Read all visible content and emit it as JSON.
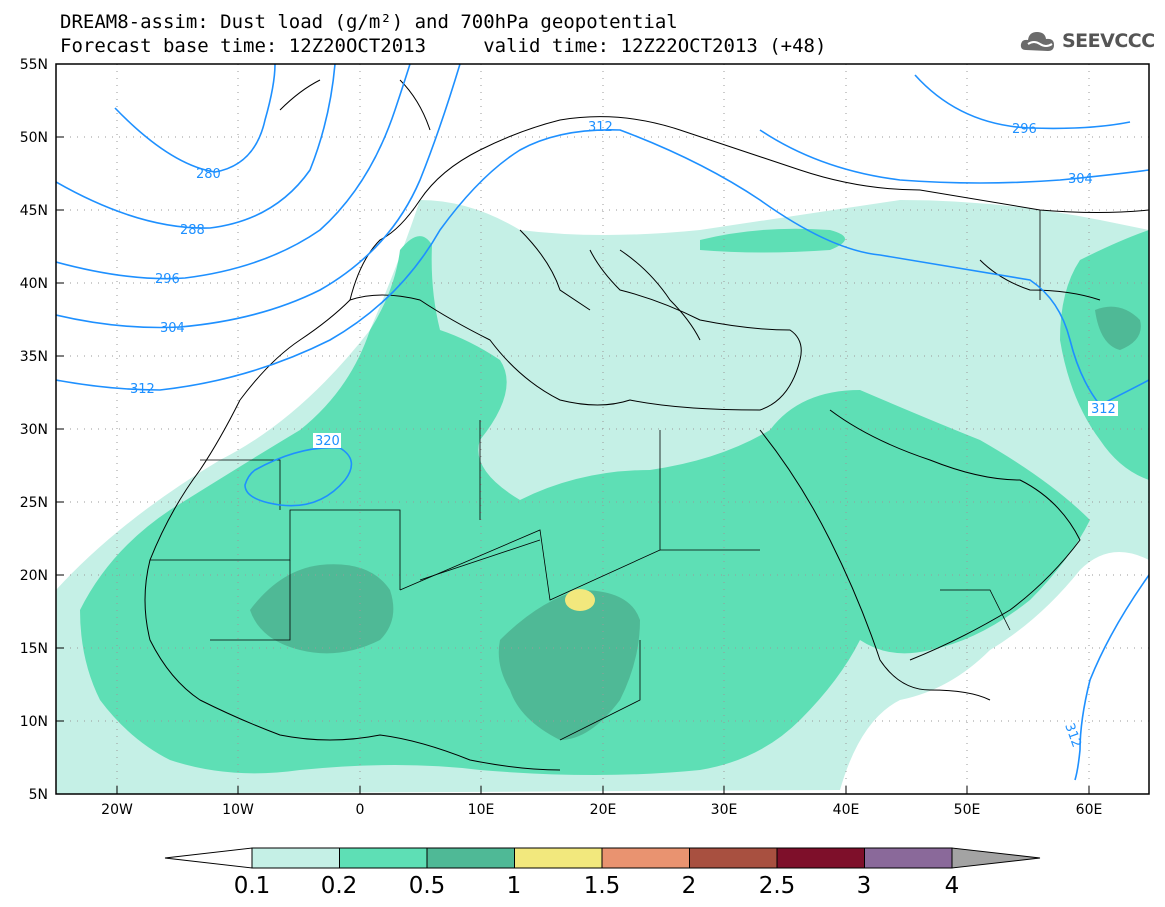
{
  "title": {
    "line1": "DREAM8-assim: Dust load (g/m²) and 700hPa geopotential",
    "line2": "Forecast base time: 12Z20OCT2013     valid time: 12Z22OCT2013 (+48)"
  },
  "logo": {
    "text": "SEEVCCC",
    "icon": "cloud-icon"
  },
  "axes": {
    "lat_labels": [
      "55N",
      "50N",
      "45N",
      "40N",
      "35N",
      "30N",
      "25N",
      "20N",
      "15N",
      "10N",
      "5N"
    ],
    "lon_labels": [
      "20W",
      "10W",
      "0",
      "10E",
      "20E",
      "30E",
      "40E",
      "50E",
      "60E"
    ],
    "lat_range": [
      5,
      55
    ],
    "lon_range": [
      -25,
      65
    ]
  },
  "contours": {
    "labels": [
      "280",
      "288",
      "296",
      "304",
      "312",
      "320",
      "312",
      "296",
      "304",
      "312",
      "312"
    ]
  },
  "colorbar": {
    "ticks": [
      "0.1",
      "0.2",
      "0.5",
      "1",
      "1.5",
      "2",
      "2.5",
      "3",
      "4"
    ],
    "colors": [
      "#ffffff",
      "#c5f0e6",
      "#5edfb5",
      "#4fb996",
      "#f2e87d",
      "#e99370",
      "#a85040",
      "#7e0f2a",
      "#8a699a",
      "#a3a3a3"
    ]
  }
}
